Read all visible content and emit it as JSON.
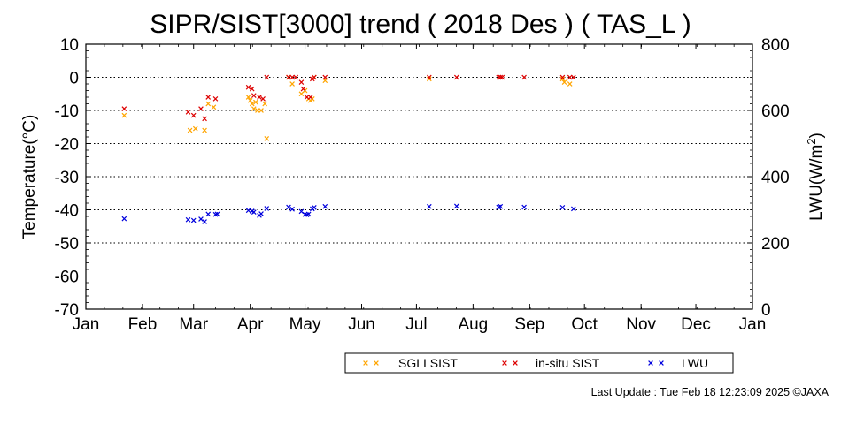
{
  "chart_data": {
    "type": "scatter",
    "title": "SIPR/SIST[3000] trend ( 2018 Des ) ( TAS_L )",
    "ylabel": "Temperature(°C)",
    "y2label": "LWU(W/m²)",
    "xlim": [
      0,
      365
    ],
    "ylim": [
      -70,
      10
    ],
    "y2lim": [
      0,
      800
    ],
    "x_ticks": [
      {
        "label": "Jan",
        "day": 0
      },
      {
        "label": "Feb",
        "day": 31
      },
      {
        "label": "Mar",
        "day": 59
      },
      {
        "label": "Apr",
        "day": 90
      },
      {
        "label": "May",
        "day": 120
      },
      {
        "label": "Jun",
        "day": 151
      },
      {
        "label": "Jul",
        "day": 181
      },
      {
        "label": "Aug",
        "day": 212
      },
      {
        "label": "Sep",
        "day": 243
      },
      {
        "label": "Oct",
        "day": 273
      },
      {
        "label": "Nov",
        "day": 304
      },
      {
        "label": "Dec",
        "day": 334
      },
      {
        "label": "Jan",
        "day": 365
      }
    ],
    "y_ticks": [
      10,
      0,
      -10,
      -20,
      -30,
      -40,
      -50,
      -60,
      -70
    ],
    "y2_ticks": [
      800,
      600,
      400,
      200,
      0
    ],
    "gridlines_y": [
      0,
      -10,
      -20,
      -30,
      -40,
      -50,
      -60
    ],
    "x_units": "day of year",
    "series": [
      {
        "name": "SGLI SIST",
        "axis": "left",
        "color": "#ffa500",
        "points": [
          [
            21,
            -11.5
          ],
          [
            57,
            -16
          ],
          [
            60,
            -15.5
          ],
          [
            65,
            -16
          ],
          [
            67,
            -8
          ],
          [
            70,
            -9
          ],
          [
            89,
            -6
          ],
          [
            90,
            -7
          ],
          [
            91,
            -8
          ],
          [
            92,
            -9.5
          ],
          [
            93,
            -7.5
          ],
          [
            94,
            -10
          ],
          [
            96,
            -10
          ],
          [
            98,
            -8
          ],
          [
            99,
            -18.5
          ],
          [
            111,
            0
          ],
          [
            113,
            -2
          ],
          [
            118,
            -5
          ],
          [
            120,
            -4
          ],
          [
            122,
            -6.5
          ],
          [
            123,
            -7
          ],
          [
            124,
            -6.5
          ],
          [
            125,
            0
          ],
          [
            131,
            -1
          ],
          [
            188,
            -0.5
          ],
          [
            261,
            -0.5
          ],
          [
            262,
            -1.5
          ],
          [
            265,
            -2
          ]
        ]
      },
      {
        "name": "in-situ SIST",
        "axis": "left",
        "color": "#dd0000",
        "points": [
          [
            21,
            -9.5
          ],
          [
            56,
            -10.5
          ],
          [
            59,
            -11.5
          ],
          [
            63,
            -9.5
          ],
          [
            65,
            -12.5
          ],
          [
            67,
            -6
          ],
          [
            71,
            -6.5
          ],
          [
            89,
            -3
          ],
          [
            91,
            -3.5
          ],
          [
            92,
            -5.5
          ],
          [
            95,
            -6
          ],
          [
            97,
            -6.5
          ],
          [
            99,
            0
          ],
          [
            111,
            0
          ],
          [
            113,
            0
          ],
          [
            115,
            0
          ],
          [
            118,
            -1.5
          ],
          [
            119,
            -3.5
          ],
          [
            121,
            -6
          ],
          [
            123,
            -6
          ],
          [
            124,
            -0.5
          ],
          [
            125,
            0
          ],
          [
            131,
            0
          ],
          [
            188,
            0
          ],
          [
            203,
            0
          ],
          [
            226,
            0
          ],
          [
            227,
            0
          ],
          [
            228,
            0
          ],
          [
            240,
            0
          ],
          [
            261,
            0
          ],
          [
            265,
            0
          ],
          [
            267,
            0
          ]
        ]
      },
      {
        "name": "LWU",
        "axis": "right",
        "color": "#0000dd",
        "points": [
          [
            21,
            273
          ],
          [
            56,
            270
          ],
          [
            59,
            268
          ],
          [
            63,
            272
          ],
          [
            65,
            264
          ],
          [
            67,
            287
          ],
          [
            71,
            286
          ],
          [
            72,
            287
          ],
          [
            89,
            298
          ],
          [
            91,
            296
          ],
          [
            92,
            293
          ],
          [
            95,
            283
          ],
          [
            96,
            288
          ],
          [
            99,
            304
          ],
          [
            111,
            308
          ],
          [
            113,
            302
          ],
          [
            118,
            295
          ],
          [
            120,
            286
          ],
          [
            121,
            285
          ],
          [
            122,
            287
          ],
          [
            124,
            303
          ],
          [
            125,
            307
          ],
          [
            131,
            310
          ],
          [
            188,
            310
          ],
          [
            203,
            311
          ],
          [
            226,
            308
          ],
          [
            227,
            310
          ],
          [
            240,
            308
          ],
          [
            261,
            307
          ],
          [
            267,
            303
          ]
        ]
      }
    ],
    "legend": {
      "placement": "bottom-center",
      "items": [
        "SGLI SIST",
        "in-situ SIST",
        "LWU"
      ]
    }
  },
  "footer": {
    "text": "Last Update : Tue Feb 18 12:23:09 2025  ©JAXA"
  }
}
